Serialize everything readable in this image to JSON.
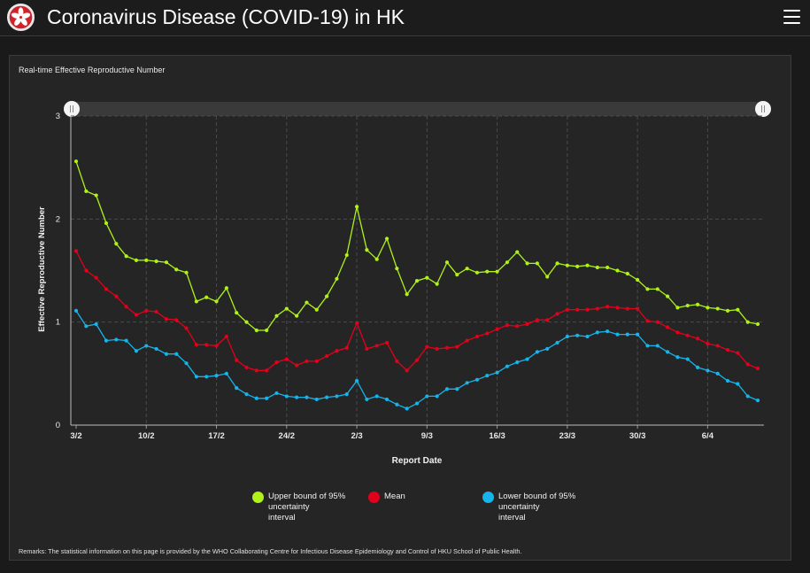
{
  "app": {
    "title": "Coronavirus Disease (COVID-19) in HK",
    "logo_icon": "hk-bauhinia-emblem-icon",
    "menu_icon": "hamburger-menu-icon"
  },
  "panel": {
    "title": "Real-time Effective Reproductive Number",
    "remarks": "Remarks: The statistical information on this page is provided by the WHO Collaborating Centre for Infectious Disease Epidemiology and Control of HKU School of Public Health."
  },
  "legend": [
    {
      "label": "Upper bound of 95%\nuncertainty\ninterval",
      "color": "#aef219"
    },
    {
      "label": "Mean",
      "color": "#e3001a"
    },
    {
      "label": "Lower bound of 95%\nuncertainty\ninterval",
      "color": "#16b4ea"
    }
  ],
  "chart_data": {
    "type": "line",
    "title": "Real-time Effective Reproductive Number",
    "xlabel": "Report Date",
    "ylabel": "Effective Reproductive Number",
    "ylim": [
      0,
      3
    ],
    "yticks": [
      0,
      1,
      2,
      3
    ],
    "xtick_labels": [
      "3/2",
      "10/2",
      "17/2",
      "24/2",
      "2/3",
      "9/3",
      "16/3",
      "23/3",
      "30/3",
      "6/4"
    ],
    "xtick_day_index": [
      0,
      7,
      14,
      21,
      28,
      35,
      42,
      49,
      56,
      63
    ],
    "x_start": "3/2",
    "x_end": "10/4",
    "grid": true,
    "range_slider": true,
    "series": [
      {
        "name": "Upper bound of 95% uncertainty interval",
        "color": "#aef219",
        "values": [
          2.56,
          2.27,
          2.23,
          1.96,
          1.76,
          1.64,
          1.6,
          1.6,
          1.59,
          1.58,
          1.51,
          1.48,
          1.2,
          1.24,
          1.2,
          1.33,
          1.09,
          1.0,
          0.92,
          0.92,
          1.06,
          1.13,
          1.06,
          1.19,
          1.12,
          1.25,
          1.42,
          1.65,
          2.12,
          1.7,
          1.61,
          1.81,
          1.52,
          1.27,
          1.4,
          1.43,
          1.37,
          1.58,
          1.46,
          1.52,
          1.48,
          1.49,
          1.49,
          1.58,
          1.68,
          1.57,
          1.57,
          1.44,
          1.57,
          1.55,
          1.54,
          1.55,
          1.53,
          1.53,
          1.5,
          1.47,
          1.41,
          1.32,
          1.32,
          1.25,
          1.14,
          1.16,
          1.17,
          1.14,
          1.13,
          1.11,
          1.12,
          1.0,
          0.98
        ]
      },
      {
        "name": "Mean",
        "color": "#e3001a",
        "values": [
          1.69,
          1.5,
          1.43,
          1.32,
          1.25,
          1.15,
          1.07,
          1.11,
          1.1,
          1.03,
          1.02,
          0.94,
          0.78,
          0.78,
          0.77,
          0.86,
          0.63,
          0.56,
          0.53,
          0.53,
          0.61,
          0.64,
          0.58,
          0.62,
          0.62,
          0.67,
          0.72,
          0.75,
          0.99,
          0.74,
          0.77,
          0.8,
          0.62,
          0.53,
          0.63,
          0.76,
          0.74,
          0.75,
          0.76,
          0.82,
          0.86,
          0.89,
          0.93,
          0.97,
          0.96,
          0.98,
          1.02,
          1.02,
          1.08,
          1.12,
          1.12,
          1.12,
          1.13,
          1.15,
          1.14,
          1.13,
          1.13,
          1.01,
          1.0,
          0.95,
          0.9,
          0.87,
          0.84,
          0.79,
          0.77,
          0.73,
          0.7,
          0.59,
          0.55
        ]
      },
      {
        "name": "Lower bound of 95% uncertainty interval",
        "color": "#16b4ea",
        "values": [
          1.11,
          0.96,
          0.98,
          0.82,
          0.83,
          0.82,
          0.72,
          0.77,
          0.74,
          0.69,
          0.69,
          0.6,
          0.47,
          0.47,
          0.48,
          0.5,
          0.36,
          0.3,
          0.26,
          0.26,
          0.31,
          0.28,
          0.27,
          0.27,
          0.25,
          0.27,
          0.28,
          0.3,
          0.43,
          0.25,
          0.28,
          0.25,
          0.2,
          0.16,
          0.21,
          0.28,
          0.28,
          0.35,
          0.35,
          0.41,
          0.44,
          0.48,
          0.51,
          0.57,
          0.61,
          0.64,
          0.71,
          0.74,
          0.8,
          0.86,
          0.87,
          0.86,
          0.9,
          0.91,
          0.88,
          0.88,
          0.88,
          0.77,
          0.77,
          0.71,
          0.66,
          0.64,
          0.56,
          0.53,
          0.5,
          0.43,
          0.4,
          0.28,
          0.24
        ]
      }
    ]
  }
}
